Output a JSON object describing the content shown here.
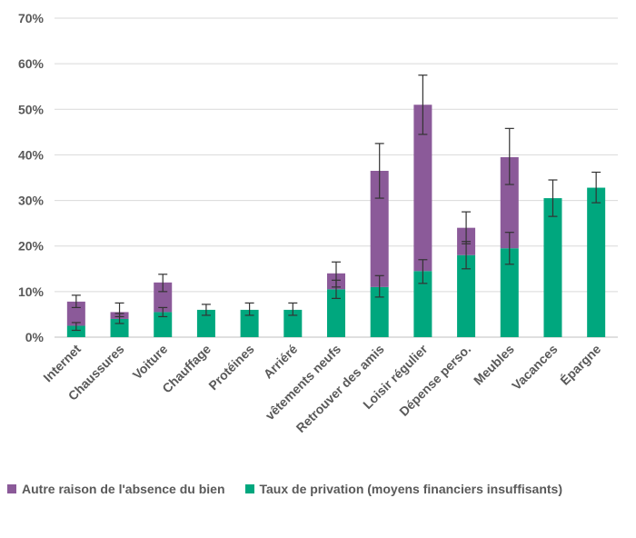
{
  "chart_data": {
    "type": "bar",
    "stacked": true,
    "categories": [
      "Internet",
      "Chaussures",
      "Voiture",
      "Chauffage",
      "Protéines",
      "Arriéré",
      "vêtements neufs",
      "Retrouver des amis",
      "Loisir régulier",
      "Dépense perso.",
      "Meubles",
      "Vacances",
      "Épargne"
    ],
    "series": [
      {
        "name": "Taux de privation (moyens financiers insuffisants)",
        "color": "#00A77E",
        "values": [
          2.5,
          4.0,
          5.5,
          6.0,
          6.0,
          6.0,
          10.5,
          11.0,
          14.5,
          18.0,
          19.5,
          30.5,
          32.8
        ],
        "error_low": [
          1.5,
          3.0,
          4.5,
          4.8,
          4.8,
          4.8,
          8.5,
          8.8,
          11.8,
          15.0,
          16.0,
          26.5,
          29.5
        ],
        "error_high": [
          3.2,
          5.2,
          6.5,
          7.2,
          7.5,
          7.5,
          12.5,
          13.5,
          17.0,
          21.0,
          23.0,
          34.5,
          36.2
        ]
      },
      {
        "name": "Autre raison de l'absence du bien",
        "color": "#8B5A99",
        "values": [
          5.3,
          1.5,
          6.5,
          0,
          0,
          0,
          3.5,
          25.5,
          36.5,
          6.0,
          20.0,
          0,
          0
        ],
        "error_low": [
          6.5,
          4.5,
          10.0,
          null,
          null,
          null,
          11.0,
          30.5,
          44.5,
          20.5,
          33.5,
          null,
          null
        ],
        "error_high": [
          9.2,
          7.5,
          13.8,
          null,
          null,
          null,
          16.5,
          42.5,
          57.5,
          27.5,
          45.8,
          null,
          null
        ]
      }
    ],
    "yticks": [
      "0%",
      "10%",
      "20%",
      "30%",
      "40%",
      "50%",
      "60%",
      "70%"
    ],
    "ylim": [
      0,
      70
    ],
    "grid": true,
    "legend_position": "bottom"
  }
}
